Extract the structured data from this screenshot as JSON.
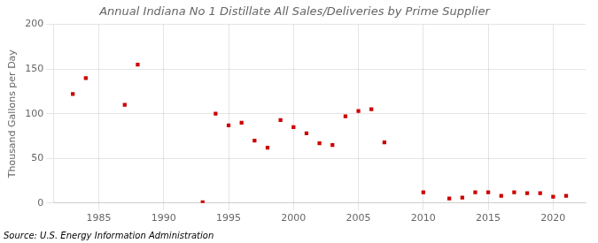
{
  "chart_data": {
    "type": "scatter",
    "title": "Annual Indiana No 1 Distillate All Sales/Deliveries by Prime Supplier",
    "ylabel": "Thousand Gallons per Day",
    "annotations": [
      "Source: U.S. Energy Information Administration"
    ],
    "x": [
      1983,
      1984,
      1987,
      1988,
      1993,
      1994,
      1995,
      1996,
      1997,
      1998,
      1999,
      2000,
      2001,
      2002,
      2003,
      2004,
      2005,
      2006,
      2007,
      2010,
      2012,
      2013,
      2014,
      2015,
      2016,
      2017,
      2018,
      2019,
      2020,
      2021
    ],
    "values": [
      122,
      140,
      110,
      155,
      1,
      100,
      87,
      90,
      70,
      62,
      93,
      85,
      78,
      67,
      65,
      97,
      103,
      105,
      68,
      12,
      5,
      6,
      12,
      12,
      8,
      12,
      11,
      11,
      7,
      8
    ],
    "color": "#cc0000",
    "marker": "square",
    "xlim": [
      1981.5,
      2022.5
    ],
    "xticks": [
      1985,
      1990,
      1995,
      2000,
      2005,
      2010,
      2015,
      2020
    ],
    "ylim": [
      0,
      200
    ],
    "yticks": [
      0,
      50,
      100,
      150,
      200
    ],
    "grid": true
  }
}
